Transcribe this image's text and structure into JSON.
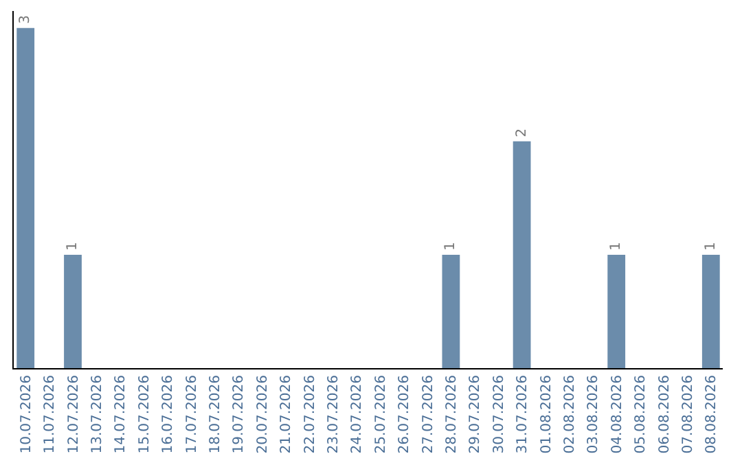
{
  "chart_data": {
    "type": "bar",
    "categories": [
      "10.07.2026",
      "11.07.2026",
      "12.07.2026",
      "13.07.2026",
      "14.07.2026",
      "15.07.2026",
      "16.07.2026",
      "17.07.2026",
      "18.07.2026",
      "19.07.2026",
      "20.07.2026",
      "21.07.2026",
      "22.07.2026",
      "23.07.2026",
      "24.07.2026",
      "25.07.2026",
      "26.07.2026",
      "27.07.2026",
      "28.07.2026",
      "29.07.2026",
      "30.07.2026",
      "31.07.2026",
      "01.08.2026",
      "02.08.2026",
      "03.08.2026",
      "04.08.2026",
      "05.08.2026",
      "06.08.2026",
      "07.08.2026",
      "08.08.2026"
    ],
    "values": [
      3,
      0,
      1,
      0,
      0,
      0,
      0,
      0,
      0,
      0,
      0,
      0,
      0,
      0,
      0,
      0,
      0,
      0,
      1,
      0,
      0,
      2,
      0,
      0,
      0,
      1,
      0,
      0,
      0,
      1
    ],
    "value_labels": [
      "3",
      null,
      "1",
      null,
      null,
      null,
      null,
      null,
      null,
      null,
      null,
      null,
      null,
      null,
      null,
      null,
      null,
      null,
      "1",
      null,
      null,
      "2",
      null,
      null,
      null,
      "1",
      null,
      null,
      null,
      "1"
    ],
    "color": "#6b8cab",
    "tick_labels": "x",
    "legend": false
  }
}
